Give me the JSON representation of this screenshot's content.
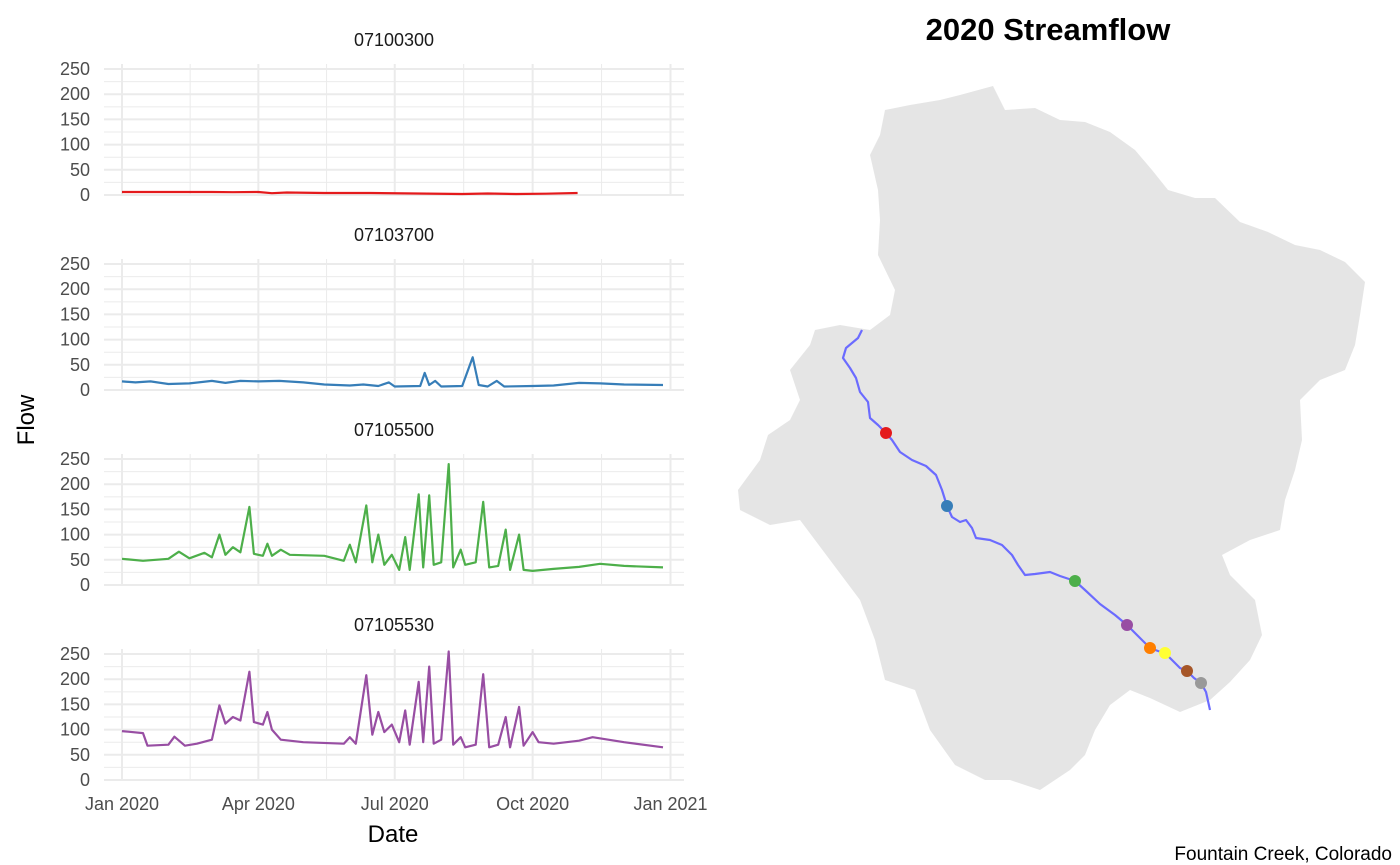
{
  "chart_data": [
    {
      "type": "line",
      "facet_layout": "4 rows, 1 column, shared x axis",
      "xlabel": "Date",
      "ylabel": "Flow",
      "xlim": [
        "2019-12-20",
        "2021-01-10"
      ],
      "ylim": [
        0,
        260
      ],
      "x_ticks": [
        {
          "date": "2020-01-01",
          "label": "Jan 2020"
        },
        {
          "date": "2020-04-01",
          "label": "Apr 2020"
        },
        {
          "date": "2020-07-01",
          "label": "Jul 2020"
        },
        {
          "date": "2020-10-01",
          "label": "Oct 2020"
        },
        {
          "date": "2021-01-01",
          "label": "Jan 2021"
        }
      ],
      "y_ticks": [
        0,
        50,
        100,
        150,
        200,
        250
      ],
      "grid": true,
      "legend": "none",
      "series": [
        {
          "name": "07100300",
          "color": "#e41a1c",
          "points": [
            [
              "2020-01-01",
              6
            ],
            [
              "2020-01-20",
              6
            ],
            [
              "2020-02-10",
              6
            ],
            [
              "2020-03-01",
              6
            ],
            [
              "2020-03-15",
              5.5
            ],
            [
              "2020-04-01",
              6
            ],
            [
              "2020-04-10",
              3.5
            ],
            [
              "2020-04-20",
              5
            ],
            [
              "2020-05-15",
              4
            ],
            [
              "2020-06-15",
              4
            ],
            [
              "2020-07-15",
              3
            ],
            [
              "2020-08-15",
              2
            ],
            [
              "2020-09-01",
              3
            ],
            [
              "2020-09-20",
              2
            ],
            [
              "2020-10-10",
              2.5
            ],
            [
              "2020-10-31",
              4
            ]
          ]
        },
        {
          "name": "07103700",
          "color": "#377eb8",
          "points": [
            [
              "2020-01-01",
              17
            ],
            [
              "2020-01-10",
              15
            ],
            [
              "2020-01-20",
              17
            ],
            [
              "2020-02-01",
              12
            ],
            [
              "2020-02-15",
              13
            ],
            [
              "2020-03-01",
              18
            ],
            [
              "2020-03-10",
              14
            ],
            [
              "2020-03-20",
              18
            ],
            [
              "2020-04-01",
              17
            ],
            [
              "2020-04-15",
              18
            ],
            [
              "2020-05-01",
              15
            ],
            [
              "2020-05-15",
              11
            ],
            [
              "2020-06-01",
              9
            ],
            [
              "2020-06-10",
              11
            ],
            [
              "2020-06-20",
              8
            ],
            [
              "2020-06-27",
              15
            ],
            [
              "2020-07-01",
              7
            ],
            [
              "2020-07-18",
              8
            ],
            [
              "2020-07-21",
              34
            ],
            [
              "2020-07-24",
              10
            ],
            [
              "2020-07-28",
              18
            ],
            [
              "2020-08-01",
              7
            ],
            [
              "2020-08-15",
              8
            ],
            [
              "2020-08-22",
              65
            ],
            [
              "2020-08-26",
              10
            ],
            [
              "2020-09-01",
              7
            ],
            [
              "2020-09-07",
              18
            ],
            [
              "2020-09-12",
              7
            ],
            [
              "2020-10-01",
              8
            ],
            [
              "2020-10-15",
              9
            ],
            [
              "2020-11-01",
              14
            ],
            [
              "2020-11-15",
              13
            ],
            [
              "2020-12-01",
              11
            ],
            [
              "2020-12-27",
              10
            ]
          ]
        },
        {
          "name": "07105500",
          "color": "#4daf4a",
          "points": [
            [
              "2020-01-01",
              52
            ],
            [
              "2020-01-15",
              48
            ],
            [
              "2020-02-01",
              52
            ],
            [
              "2020-02-08",
              66
            ],
            [
              "2020-02-15",
              53
            ],
            [
              "2020-02-25",
              64
            ],
            [
              "2020-03-01",
              55
            ],
            [
              "2020-03-06",
              100
            ],
            [
              "2020-03-10",
              60
            ],
            [
              "2020-03-15",
              75
            ],
            [
              "2020-03-20",
              65
            ],
            [
              "2020-03-26",
              155
            ],
            [
              "2020-03-29",
              62
            ],
            [
              "2020-04-04",
              58
            ],
            [
              "2020-04-07",
              82
            ],
            [
              "2020-04-10",
              58
            ],
            [
              "2020-04-16",
              70
            ],
            [
              "2020-04-22",
              60
            ],
            [
              "2020-05-15",
              58
            ],
            [
              "2020-05-28",
              48
            ],
            [
              "2020-06-01",
              80
            ],
            [
              "2020-06-05",
              45
            ],
            [
              "2020-06-12",
              158
            ],
            [
              "2020-06-16",
              45
            ],
            [
              "2020-06-20",
              100
            ],
            [
              "2020-06-24",
              40
            ],
            [
              "2020-06-29",
              60
            ],
            [
              "2020-07-04",
              30
            ],
            [
              "2020-07-08",
              95
            ],
            [
              "2020-07-11",
              30
            ],
            [
              "2020-07-17",
              180
            ],
            [
              "2020-07-20",
              35
            ],
            [
              "2020-07-24",
              178
            ],
            [
              "2020-07-27",
              40
            ],
            [
              "2020-08-01",
              45
            ],
            [
              "2020-08-06",
              240
            ],
            [
              "2020-08-09",
              35
            ],
            [
              "2020-08-14",
              70
            ],
            [
              "2020-08-17",
              40
            ],
            [
              "2020-08-24",
              45
            ],
            [
              "2020-08-29",
              165
            ],
            [
              "2020-09-02",
              35
            ],
            [
              "2020-09-08",
              38
            ],
            [
              "2020-09-13",
              110
            ],
            [
              "2020-09-16",
              30
            ],
            [
              "2020-09-22",
              100
            ],
            [
              "2020-09-25",
              30
            ],
            [
              "2020-10-01",
              28
            ],
            [
              "2020-10-15",
              32
            ],
            [
              "2020-11-01",
              36
            ],
            [
              "2020-11-15",
              42
            ],
            [
              "2020-12-01",
              38
            ],
            [
              "2020-12-27",
              35
            ]
          ]
        },
        {
          "name": "07105530",
          "color": "#984ea3",
          "points": [
            [
              "2020-01-01",
              97
            ],
            [
              "2020-01-15",
              93
            ],
            [
              "2020-01-18",
              68
            ],
            [
              "2020-02-01",
              70
            ],
            [
              "2020-02-05",
              86
            ],
            [
              "2020-02-12",
              68
            ],
            [
              "2020-02-20",
              72
            ],
            [
              "2020-03-01",
              80
            ],
            [
              "2020-03-06",
              148
            ],
            [
              "2020-03-10",
              112
            ],
            [
              "2020-03-15",
              125
            ],
            [
              "2020-03-20",
              118
            ],
            [
              "2020-03-26",
              215
            ],
            [
              "2020-03-29",
              115
            ],
            [
              "2020-04-04",
              110
            ],
            [
              "2020-04-07",
              135
            ],
            [
              "2020-04-10",
              100
            ],
            [
              "2020-04-16",
              80
            ],
            [
              "2020-05-01",
              75
            ],
            [
              "2020-05-28",
              72
            ],
            [
              "2020-06-01",
              85
            ],
            [
              "2020-06-05",
              72
            ],
            [
              "2020-06-12",
              208
            ],
            [
              "2020-06-16",
              90
            ],
            [
              "2020-06-20",
              135
            ],
            [
              "2020-06-24",
              95
            ],
            [
              "2020-06-29",
              110
            ],
            [
              "2020-07-04",
              75
            ],
            [
              "2020-07-08",
              138
            ],
            [
              "2020-07-11",
              70
            ],
            [
              "2020-07-17",
              195
            ],
            [
              "2020-07-20",
              75
            ],
            [
              "2020-07-24",
              225
            ],
            [
              "2020-07-27",
              72
            ],
            [
              "2020-08-01",
              80
            ],
            [
              "2020-08-06",
              255
            ],
            [
              "2020-08-09",
              70
            ],
            [
              "2020-08-14",
              85
            ],
            [
              "2020-08-17",
              65
            ],
            [
              "2020-08-24",
              70
            ],
            [
              "2020-08-29",
              210
            ],
            [
              "2020-09-02",
              65
            ],
            [
              "2020-09-08",
              70
            ],
            [
              "2020-09-13",
              125
            ],
            [
              "2020-09-16",
              65
            ],
            [
              "2020-09-22",
              145
            ],
            [
              "2020-09-25",
              68
            ],
            [
              "2020-10-01",
              95
            ],
            [
              "2020-10-05",
              75
            ],
            [
              "2020-10-15",
              72
            ],
            [
              "2020-11-01",
              78
            ],
            [
              "2020-11-10",
              85
            ],
            [
              "2020-12-01",
              75
            ],
            [
              "2020-12-27",
              65
            ]
          ]
        }
      ]
    },
    {
      "type": "map",
      "title": "2020 Streamflow",
      "caption": "Fountain Creek, Colorado",
      "basin_fill": "#e5e5e5",
      "stream_color": "#6b6bff",
      "gauge_colors": [
        "#e41a1c",
        "#377eb8",
        "#4daf4a",
        "#984ea3",
        "#ff7f00",
        "#ffff33",
        "#a65628",
        "#999999"
      ]
    }
  ]
}
